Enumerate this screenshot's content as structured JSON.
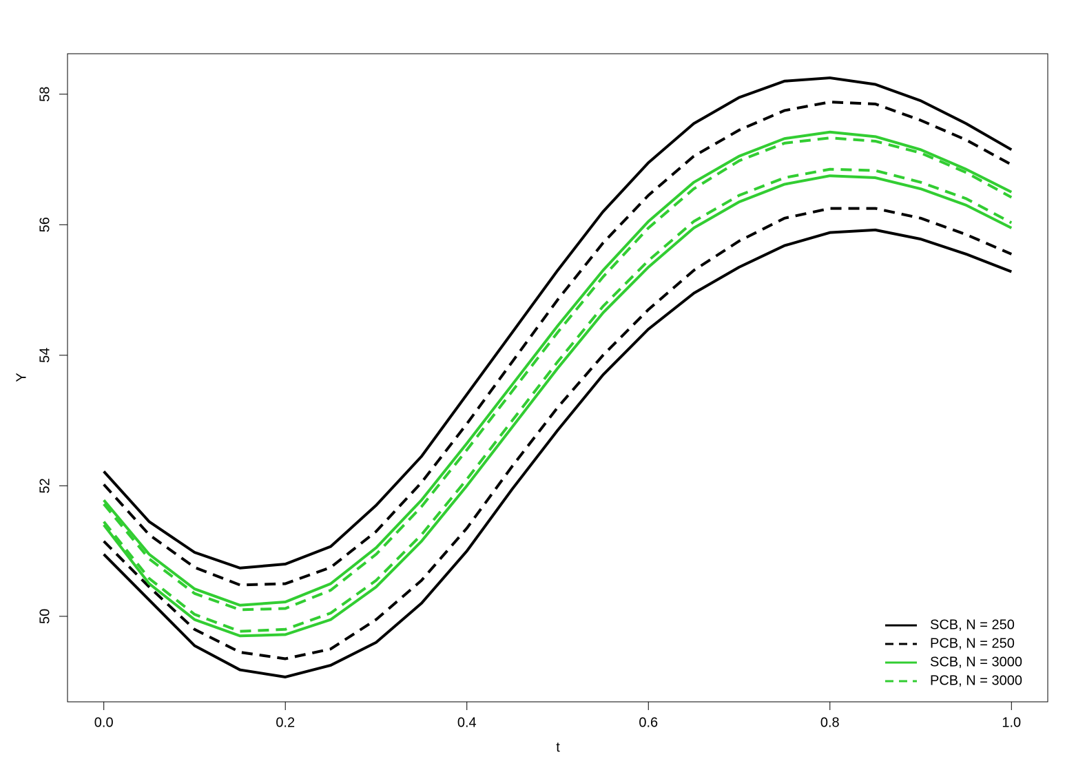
{
  "chart_data": {
    "type": "line",
    "xlabel": "t",
    "ylabel": "Y",
    "x": [
      0,
      0.05,
      0.1,
      0.15,
      0.2,
      0.25,
      0.3,
      0.35,
      0.4,
      0.45,
      0.5,
      0.55,
      0.6,
      0.65,
      0.7,
      0.75,
      0.8,
      0.85,
      0.9,
      0.95,
      1
    ],
    "xlim": [
      -0.04,
      1.04
    ],
    "xticks": [
      {
        "value": 0,
        "label": "0.0"
      },
      0.2,
      0.4,
      0.6,
      0.8,
      {
        "value": 1,
        "label": "1.0"
      }
    ],
    "ylim": [
      48.69,
      58.62
    ],
    "yticks": [
      50,
      52,
      54,
      56,
      58
    ],
    "legend": "bottom-right",
    "series": [
      {
        "name": "SCB, N = 250",
        "color": "#000000",
        "dashed": false,
        "upper": [
          52.22,
          51.45,
          50.98,
          50.74,
          50.8,
          51.07,
          51.7,
          52.45,
          53.4,
          54.35,
          55.3,
          56.2,
          56.95,
          57.55,
          57.95,
          58.2,
          58.25,
          58.15,
          57.9,
          57.55,
          57.15
        ],
        "lower": [
          50.95,
          50.25,
          49.55,
          49.18,
          49.07,
          49.25,
          49.6,
          50.2,
          51.0,
          51.95,
          52.85,
          53.7,
          54.4,
          54.95,
          55.35,
          55.68,
          55.88,
          55.92,
          55.78,
          55.55,
          55.28
        ]
      },
      {
        "name": "PCB, N = 250",
        "color": "#000000",
        "dashed": true,
        "upper": [
          52.02,
          51.25,
          50.75,
          50.48,
          50.5,
          50.75,
          51.3,
          52.05,
          52.95,
          53.9,
          54.85,
          55.72,
          56.45,
          57.05,
          57.45,
          57.75,
          57.88,
          57.85,
          57.6,
          57.3,
          56.92
        ],
        "lower": [
          51.15,
          50.45,
          49.8,
          49.45,
          49.35,
          49.5,
          49.95,
          50.55,
          51.35,
          52.3,
          53.2,
          54.0,
          54.7,
          55.3,
          55.75,
          56.1,
          56.25,
          56.25,
          56.1,
          55.85,
          55.55
        ]
      },
      {
        "name": "SCB, N = 3000",
        "color": "#32cd32",
        "dashed": false,
        "upper": [
          51.78,
          50.95,
          50.42,
          50.17,
          50.22,
          50.5,
          51.05,
          51.78,
          52.65,
          53.55,
          54.45,
          55.3,
          56.05,
          56.65,
          57.05,
          57.32,
          57.42,
          57.35,
          57.15,
          56.85,
          56.5
        ],
        "lower": [
          51.4,
          50.5,
          49.95,
          49.7,
          49.72,
          49.95,
          50.45,
          51.15,
          52.0,
          52.9,
          53.8,
          54.65,
          55.35,
          55.95,
          56.35,
          56.62,
          56.75,
          56.72,
          56.55,
          56.3,
          55.95
        ]
      },
      {
        "name": "PCB, N = 3000",
        "color": "#32cd32",
        "dashed": true,
        "upper": [
          51.72,
          50.88,
          50.35,
          50.1,
          50.12,
          50.4,
          50.95,
          51.68,
          52.55,
          53.45,
          54.35,
          55.2,
          55.95,
          56.55,
          56.98,
          57.25,
          57.33,
          57.28,
          57.1,
          56.8,
          56.42
        ],
        "lower": [
          51.45,
          50.58,
          50.03,
          49.77,
          49.8,
          50.05,
          50.55,
          51.25,
          52.1,
          53.0,
          53.9,
          54.75,
          55.45,
          56.05,
          56.45,
          56.72,
          56.85,
          56.83,
          56.65,
          56.4,
          56.03
        ]
      }
    ]
  }
}
